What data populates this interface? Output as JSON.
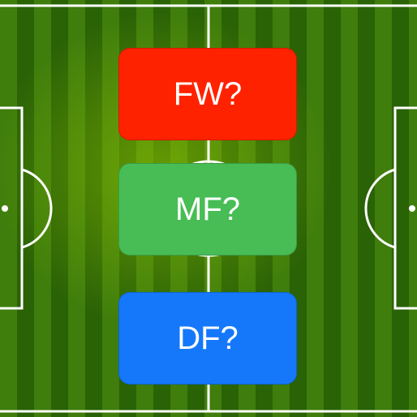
{
  "buttons": [
    {
      "label": "FW?",
      "color": "#ff2200"
    },
    {
      "label": "MF?",
      "color": "#48bd55"
    },
    {
      "label": "DF?",
      "color": "#1578fb"
    }
  ],
  "pitch": {
    "line_color": "#ffffff"
  }
}
